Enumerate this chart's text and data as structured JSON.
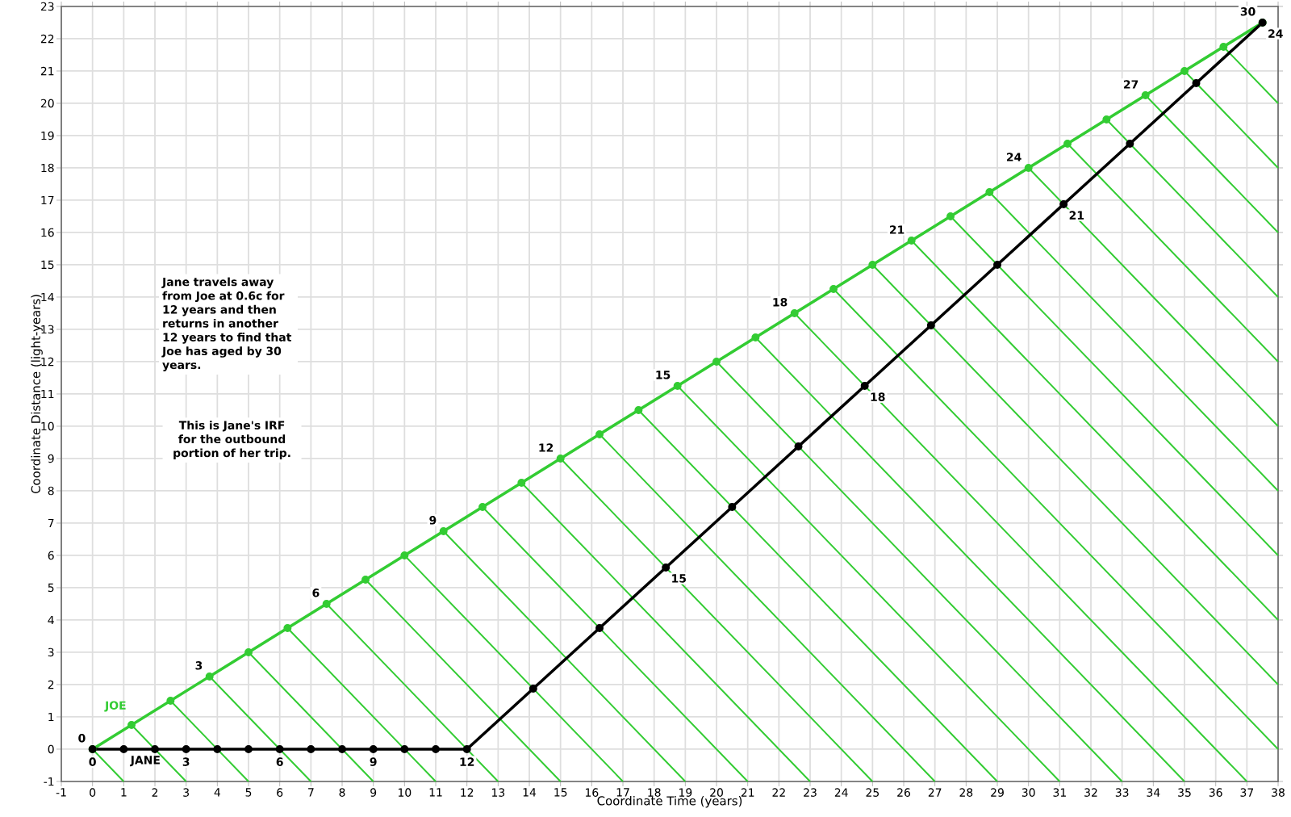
{
  "chart_data": {
    "type": "line",
    "xlabel": "Coordinate Time (years)",
    "ylabel": "Coordinate Distance (light-years)",
    "xlim": [
      -1,
      38
    ],
    "ylim": [
      -1,
      23
    ],
    "xticks": [
      -1,
      0,
      1,
      2,
      3,
      4,
      5,
      6,
      7,
      8,
      9,
      10,
      11,
      12,
      13,
      14,
      15,
      16,
      17,
      18,
      19,
      20,
      21,
      22,
      23,
      24,
      25,
      26,
      27,
      28,
      29,
      30,
      31,
      32,
      33,
      34,
      35,
      36,
      37,
      38
    ],
    "yticks": [
      -1,
      0,
      1,
      2,
      3,
      4,
      5,
      6,
      7,
      8,
      9,
      10,
      11,
      12,
      13,
      14,
      15,
      16,
      17,
      18,
      19,
      20,
      21,
      22,
      23
    ],
    "grid": true,
    "series": [
      {
        "name": "JOE",
        "color": "#33cc33",
        "marker": "circle",
        "x": [
          0,
          1.25,
          2.5,
          3.75,
          5,
          6.25,
          7.5,
          8.75,
          10,
          11.25,
          12.5,
          13.75,
          15,
          16.25,
          17.5,
          18.75,
          20,
          21.25,
          22.5,
          23.75,
          25,
          26.25,
          27.5,
          28.75,
          30,
          31.25,
          32.5,
          33.75,
          35,
          36.25,
          37.5
        ],
        "values": [
          0,
          0.75,
          1.5,
          2.25,
          3,
          3.75,
          4.5,
          5.25,
          6,
          6.75,
          7.5,
          8.25,
          9,
          9.75,
          10.5,
          11.25,
          12,
          12.75,
          13.5,
          14.25,
          15,
          15.75,
          16.5,
          17.25,
          18,
          18.75,
          19.5,
          20.25,
          21,
          21.75,
          22.5
        ]
      },
      {
        "name": "JANE",
        "color": "#000000",
        "marker": "circle",
        "x": [
          0,
          1,
          2,
          3,
          4,
          5,
          6,
          7,
          8,
          9,
          10,
          11,
          12,
          14.125,
          16.25,
          18.375,
          20.5,
          22.625,
          24.75,
          26.875,
          29,
          31.125,
          33.25,
          35.375,
          37.5
        ],
        "values": [
          0,
          0,
          0,
          0,
          0,
          0,
          0,
          0,
          0,
          0,
          0,
          0,
          0,
          1.875,
          3.75,
          5.625,
          7.5,
          9.375,
          11.25,
          13.125,
          15,
          16.875,
          18.75,
          20.625,
          22.5
        ]
      },
      {
        "color": "#33cc33",
        "marker": "none",
        "x": [
          0,
          1,
          null,
          1.25,
          3,
          null,
          2.5,
          5,
          null,
          3.75,
          7,
          null,
          5,
          9,
          null,
          6.25,
          11,
          null,
          7.5,
          13,
          null,
          8.75,
          15,
          null,
          10,
          17,
          null,
          11.25,
          19,
          null,
          12.5,
          21,
          null,
          13.75,
          23,
          null,
          15,
          25,
          null,
          16.25,
          27,
          null,
          17.5,
          29,
          null,
          18.75,
          31,
          null,
          20,
          33,
          null,
          21.25,
          35,
          null,
          22.5,
          37,
          null,
          23.75,
          38,
          null,
          25,
          38,
          null,
          26.25,
          38,
          null,
          27.5,
          38,
          null,
          28.75,
          38,
          null,
          30,
          38,
          null,
          31.25,
          38,
          null,
          32.5,
          38,
          null,
          33.75,
          38,
          null,
          35,
          38,
          null,
          36.25,
          38
        ],
        "values": [
          0,
          -1,
          null,
          0.75,
          -1,
          null,
          1.5,
          -1,
          null,
          2.25,
          -1,
          null,
          3,
          -1,
          null,
          3.75,
          -1,
          null,
          4.5,
          -1,
          null,
          5.25,
          -1,
          null,
          6,
          -1,
          null,
          6.75,
          -1,
          null,
          7.5,
          -1,
          null,
          8.25,
          -1,
          null,
          9,
          -1,
          null,
          9.75,
          -1,
          null,
          10.5,
          -1,
          null,
          11.25,
          -1,
          null,
          12,
          -1,
          null,
          12.75,
          -1,
          null,
          13.5,
          -1,
          null,
          14.25,
          0,
          null,
          15,
          2,
          null,
          15.75,
          4,
          null,
          16.5,
          6,
          null,
          17.25,
          8,
          null,
          18,
          10,
          null,
          18.75,
          12,
          null,
          19.5,
          14,
          null,
          20.25,
          16,
          null,
          21,
          18,
          null,
          21.75,
          20
        ]
      }
    ],
    "annotations": [
      "Jane travels away from Joe at 0.6c for 12 years and then returns in another 12 years to find that Joe has aged by 30 years.",
      "This is Jane's IRF for the outbound portion of her trip.",
      {
        "text": "0",
        "x": 0,
        "y": 0
      },
      {
        "text": "3",
        "x": 3.75,
        "y": 2.25
      },
      {
        "text": "6",
        "x": 7.5,
        "y": 4.5
      },
      {
        "text": "9",
        "x": 11.25,
        "y": 6.75
      },
      {
        "text": "12",
        "x": 15,
        "y": 9
      },
      {
        "text": "15",
        "x": 18.75,
        "y": 11.25
      },
      {
        "text": "18",
        "x": 22.5,
        "y": 13.5
      },
      {
        "text": "21",
        "x": 26.25,
        "y": 15.75
      },
      {
        "text": "24",
        "x": 30,
        "y": 18
      },
      {
        "text": "27",
        "x": 33.75,
        "y": 20.25
      },
      {
        "text": "30",
        "x": 37.5,
        "y": 22.5
      },
      {
        "text": "0",
        "x": 0,
        "y": 0
      },
      {
        "text": "3",
        "x": 3,
        "y": 0
      },
      {
        "text": "6",
        "x": 6,
        "y": 0
      },
      {
        "text": "9",
        "x": 9,
        "y": 0
      },
      {
        "text": "12",
        "x": 12,
        "y": 0
      },
      {
        "text": "15",
        "x": 18.375,
        "y": 5.625
      },
      {
        "text": "18",
        "x": 24.75,
        "y": 11.25
      },
      {
        "text": "21",
        "x": 31.125,
        "y": 16.875
      },
      {
        "text": "24",
        "x": 37.5,
        "y": 22.5
      }
    ]
  }
}
